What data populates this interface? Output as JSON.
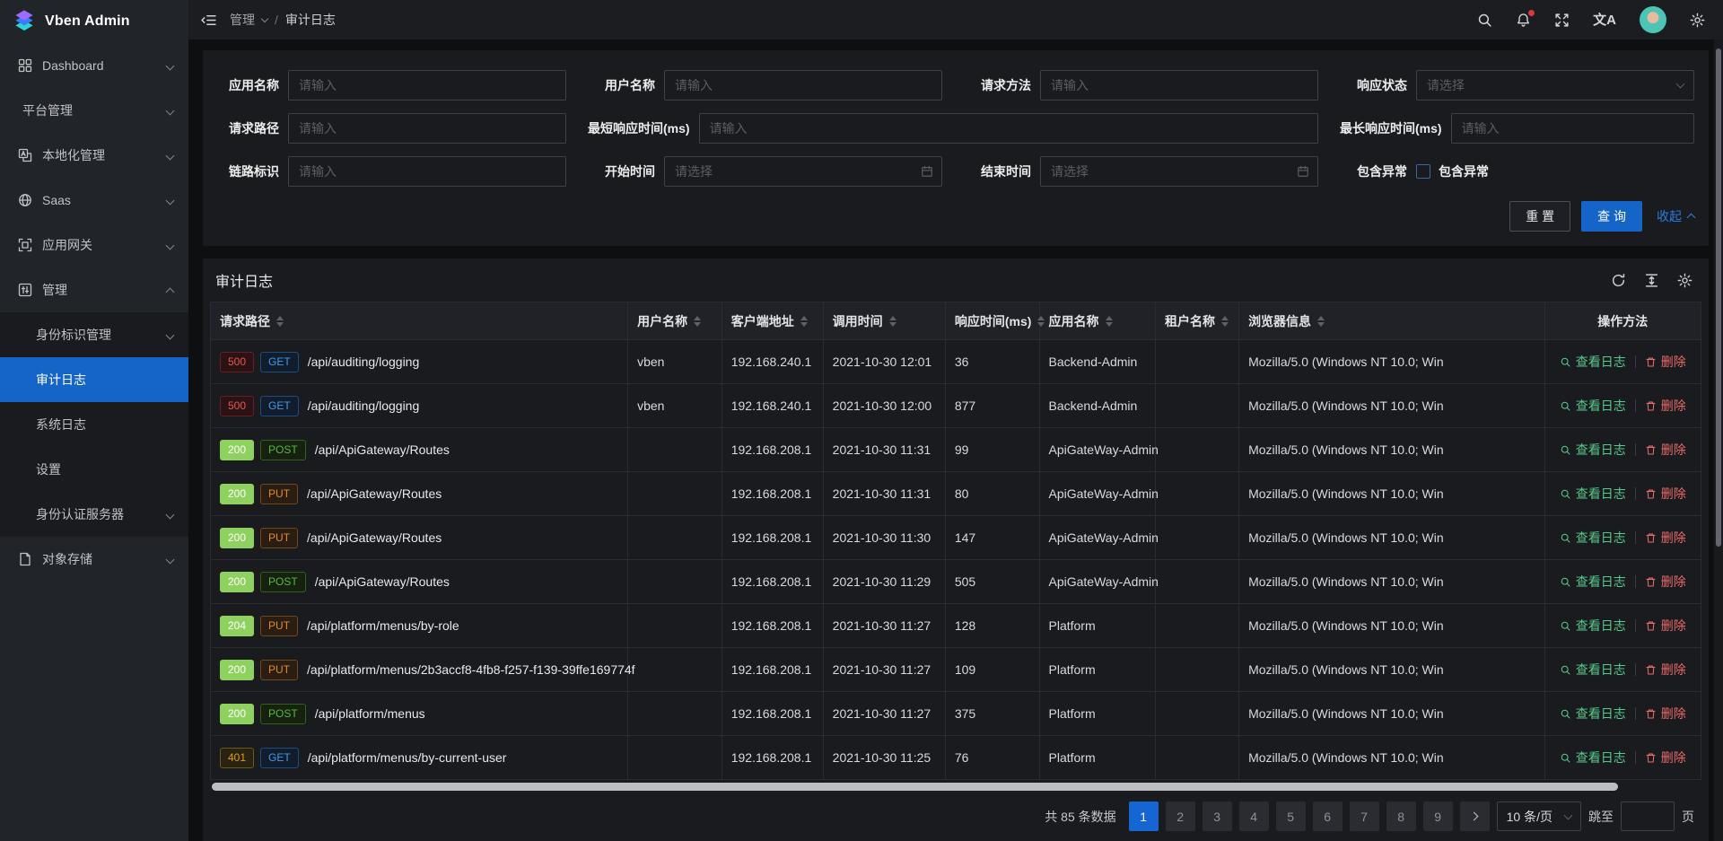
{
  "app": {
    "title": "Vben Admin"
  },
  "header": {
    "breadcrumb": {
      "section": "管理",
      "separator": "/",
      "page": "审计日志"
    },
    "icons": {
      "translate_glyph": "文A"
    }
  },
  "sidebar": {
    "items": [
      {
        "id": "dashboard",
        "label": "Dashboard",
        "icon": "dashboard",
        "chevron": "down"
      },
      {
        "id": "platform",
        "label": "平台管理",
        "chevron": "down"
      },
      {
        "id": "localization",
        "label": "本地化管理",
        "icon": "localization",
        "chevron": "down"
      },
      {
        "id": "saas",
        "label": "Saas",
        "icon": "saas",
        "chevron": "down"
      },
      {
        "id": "gateway",
        "label": "应用网关",
        "icon": "gateway",
        "chevron": "down"
      },
      {
        "id": "manage",
        "label": "管理",
        "icon": "manage",
        "chevron": "up",
        "expanded": true,
        "children": [
          {
            "id": "identity",
            "label": "身份标识管理",
            "chevron": "down"
          },
          {
            "id": "audit-log",
            "label": "审计日志",
            "active": true
          },
          {
            "id": "system-log",
            "label": "系统日志"
          },
          {
            "id": "settings",
            "label": "设置"
          },
          {
            "id": "auth-server",
            "label": "身份认证服务器",
            "chevron": "down"
          }
        ]
      },
      {
        "id": "storage",
        "label": "对象存储",
        "icon": "storage",
        "chevron": "down"
      }
    ]
  },
  "filters": {
    "rows": [
      [
        {
          "id": "app-name",
          "label": "应用名称",
          "type": "input",
          "placeholder": "请输入"
        },
        {
          "id": "user-name",
          "label": "用户名称",
          "type": "input",
          "placeholder": "请输入"
        },
        {
          "id": "request-method",
          "label": "请求方法",
          "type": "input",
          "placeholder": "请输入"
        },
        {
          "id": "response-status",
          "label": "响应状态",
          "type": "select",
          "placeholder": "请选择"
        }
      ],
      [
        {
          "id": "request-path",
          "label": "请求路径",
          "type": "input",
          "placeholder": "请输入"
        },
        {
          "id": "min-response-time",
          "label": "最短响应时间(ms)",
          "type": "input",
          "placeholder": "请输入",
          "span": 2
        },
        {
          "id": "max-response-time",
          "label": "最长响应时间(ms)",
          "type": "input",
          "placeholder": "请输入"
        }
      ],
      [
        {
          "id": "trace-id",
          "label": "链路标识",
          "type": "input",
          "placeholder": "请输入"
        },
        {
          "id": "start-time",
          "label": "开始时间",
          "type": "date",
          "placeholder": "请选择"
        },
        {
          "id": "end-time",
          "label": "结束时间",
          "type": "date",
          "placeholder": "请选择"
        },
        {
          "id": "include-exception",
          "label": "包含异常",
          "type": "checkbox",
          "checkbox_label": "包含异常",
          "checked": false
        }
      ]
    ],
    "reset_label": "重 置",
    "search_label": "查 询",
    "collapse_label": "收起"
  },
  "table": {
    "title": "审计日志",
    "view_label": "查看日志",
    "delete_label": "删除",
    "columns": [
      {
        "id": "path",
        "label": "请求路径",
        "sortable": true,
        "width": "28%"
      },
      {
        "id": "user",
        "label": "用户名称",
        "sortable": true,
        "width": "6.3%"
      },
      {
        "id": "client",
        "label": "客户端地址",
        "sortable": true,
        "width": "6.8%"
      },
      {
        "id": "time",
        "label": "调用时间",
        "sortable": true,
        "width": "8.2%"
      },
      {
        "id": "duration",
        "label": "响应时间(ms)",
        "sortable": true,
        "width": "6.3%"
      },
      {
        "id": "app",
        "label": "应用名称",
        "sortable": true,
        "width": "7.8%"
      },
      {
        "id": "tenant",
        "label": "租户名称",
        "sortable": true,
        "width": "5.6%"
      },
      {
        "id": "browser",
        "label": "浏览器信息",
        "sortable": true,
        "width": "20.5%"
      },
      {
        "id": "actions",
        "label": "操作方法",
        "sortable": false,
        "width": "10.5%",
        "align": "center"
      }
    ],
    "rows": [
      {
        "status": "500",
        "status_type": "error",
        "method": "GET",
        "method_type": "get",
        "path": "/api/auditing/logging",
        "user": "vben",
        "client": "192.168.240.1",
        "time": "2021-10-30 12:01",
        "duration": "36",
        "app": "Backend-Admin",
        "tenant": "",
        "browser": "Mozilla/5.0 (Windows NT 10.0; Win"
      },
      {
        "status": "500",
        "status_type": "error",
        "method": "GET",
        "method_type": "get",
        "path": "/api/auditing/logging",
        "user": "vben",
        "client": "192.168.240.1",
        "time": "2021-10-30 12:00",
        "duration": "877",
        "app": "Backend-Admin",
        "tenant": "",
        "browser": "Mozilla/5.0 (Windows NT 10.0; Win"
      },
      {
        "status": "200",
        "status_type": "success",
        "method": "POST",
        "method_type": "post",
        "path": "/api/ApiGateway/Routes",
        "user": "",
        "client": "192.168.208.1",
        "time": "2021-10-30 11:31",
        "duration": "99",
        "app": "ApiGateWay-Admin",
        "tenant": "",
        "browser": "Mozilla/5.0 (Windows NT 10.0; Win"
      },
      {
        "status": "200",
        "status_type": "success",
        "method": "PUT",
        "method_type": "put",
        "path": "/api/ApiGateway/Routes",
        "user": "",
        "client": "192.168.208.1",
        "time": "2021-10-30 11:31",
        "duration": "80",
        "app": "ApiGateWay-Admin",
        "tenant": "",
        "browser": "Mozilla/5.0 (Windows NT 10.0; Win"
      },
      {
        "status": "200",
        "status_type": "success",
        "method": "PUT",
        "method_type": "put",
        "path": "/api/ApiGateway/Routes",
        "user": "",
        "client": "192.168.208.1",
        "time": "2021-10-30 11:30",
        "duration": "147",
        "app": "ApiGateWay-Admin",
        "tenant": "",
        "browser": "Mozilla/5.0 (Windows NT 10.0; Win"
      },
      {
        "status": "200",
        "status_type": "success",
        "method": "POST",
        "method_type": "post",
        "path": "/api/ApiGateway/Routes",
        "user": "",
        "client": "192.168.208.1",
        "time": "2021-10-30 11:29",
        "duration": "505",
        "app": "ApiGateWay-Admin",
        "tenant": "",
        "browser": "Mozilla/5.0 (Windows NT 10.0; Win"
      },
      {
        "status": "204",
        "status_type": "success",
        "method": "PUT",
        "method_type": "put",
        "path": "/api/platform/menus/by-role",
        "user": "",
        "client": "192.168.208.1",
        "time": "2021-10-30 11:27",
        "duration": "128",
        "app": "Platform",
        "tenant": "",
        "browser": "Mozilla/5.0 (Windows NT 10.0; Win"
      },
      {
        "status": "200",
        "status_type": "success",
        "method": "PUT",
        "method_type": "put",
        "path": "/api/platform/menus/2b3accf8-4fb8-f257-f139-39ffe169774f",
        "user": "",
        "client": "192.168.208.1",
        "time": "2021-10-30 11:27",
        "duration": "109",
        "app": "Platform",
        "tenant": "",
        "browser": "Mozilla/5.0 (Windows NT 10.0; Win"
      },
      {
        "status": "200",
        "status_type": "success",
        "method": "POST",
        "method_type": "post",
        "path": "/api/platform/menus",
        "user": "",
        "client": "192.168.208.1",
        "time": "2021-10-30 11:27",
        "duration": "375",
        "app": "Platform",
        "tenant": "",
        "browser": "Mozilla/5.0 (Windows NT 10.0; Win"
      },
      {
        "status": "401",
        "status_type": "warning",
        "method": "GET",
        "method_type": "get",
        "path": "/api/platform/menus/by-current-user",
        "user": "",
        "client": "192.168.208.1",
        "time": "2021-10-30 11:25",
        "duration": "76",
        "app": "Platform",
        "tenant": "",
        "browser": "Mozilla/5.0 (Windows NT 10.0; Win"
      }
    ]
  },
  "pagination": {
    "total_label": "共 85 条数据",
    "pages": [
      "1",
      "2",
      "3",
      "4",
      "5",
      "6",
      "7",
      "8",
      "9"
    ],
    "active_page": "1",
    "size_label": "10 条/页",
    "jump_label": "跳至",
    "page_unit_label": "页"
  },
  "colors": {
    "primary": "#1565c8",
    "menu_active": "#1565c8",
    "status_success_badge": "#8fd15f",
    "status_error_text": "#ef5350",
    "status_warning_text": "#e39e1c",
    "action_view": "#57c98c",
    "action_delete": "#ea6b67"
  }
}
